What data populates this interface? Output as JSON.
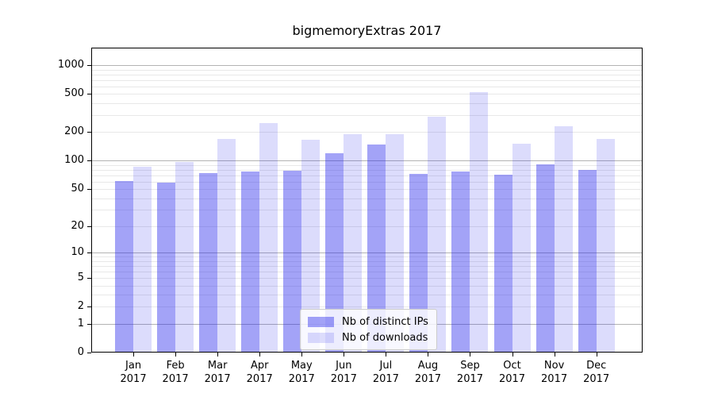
{
  "title": "bigmemoryExtras 2017",
  "chart_data": {
    "type": "bar",
    "title": "bigmemoryExtras 2017",
    "categories": [
      "Jan 2017",
      "Feb 2017",
      "Mar 2017",
      "Apr 2017",
      "May 2017",
      "Jun 2017",
      "Jul 2017",
      "Aug 2017",
      "Sep 2017",
      "Oct 2017",
      "Nov 2017",
      "Dec 2017"
    ],
    "series": [
      {
        "name": "Nb of distinct IPs",
        "color": "rgba(35,35,235,0.42)",
        "values": [
          61,
          59,
          74,
          77,
          78,
          120,
          148,
          72,
          76,
          71,
          92,
          80
        ]
      },
      {
        "name": "Nb of downloads",
        "color": "rgba(35,35,235,0.16)",
        "values": [
          86,
          96,
          169,
          250,
          166,
          188,
          188,
          290,
          525,
          151,
          229,
          170
        ]
      }
    ],
    "xlabel": "",
    "ylabel": "",
    "y_scale": "log10(value+1)",
    "y_ticks": [
      1000,
      500,
      200,
      100,
      50,
      20,
      10,
      5,
      2,
      1,
      0
    ],
    "y_major_gridlines": [
      1,
      10,
      100,
      1000
    ],
    "y_minor_gridlines": [
      2,
      3,
      4,
      5,
      6,
      7,
      8,
      9,
      20,
      30,
      40,
      50,
      60,
      70,
      80,
      90,
      200,
      300,
      400,
      500,
      600,
      700,
      800,
      900
    ],
    "ylim": [
      0,
      1527
    ],
    "grid": true,
    "legend_position": "lower center"
  },
  "legend": {
    "items": [
      "Nb of distinct IPs",
      "Nb of downloads"
    ]
  },
  "colors": {
    "background": "#ffffff",
    "axis": "#000000",
    "major_gridline": "#b3b3b3",
    "minor_gridline": "#e8e8e8",
    "text": "#000000",
    "legend_border": "#cccccc",
    "legend_background": "rgba(255,255,255,0.8)"
  }
}
